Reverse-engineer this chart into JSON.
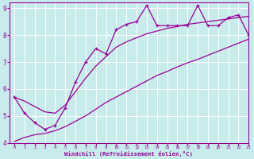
{
  "xlabel": "Windchill (Refroidissement éolien,°C)",
  "bg_color": "#c8ecec",
  "grid_color": "#aadddd",
  "line_color": "#990099",
  "x_data": [
    0,
    1,
    2,
    3,
    4,
    5,
    6,
    7,
    8,
    9,
    10,
    11,
    12,
    13,
    14,
    15,
    16,
    17,
    18,
    19,
    20,
    21,
    22,
    23
  ],
  "y_jagged": [
    5.7,
    5.1,
    4.75,
    4.5,
    4.65,
    5.3,
    6.25,
    7.0,
    7.5,
    7.3,
    8.2,
    8.4,
    8.5,
    9.1,
    8.35,
    8.35,
    8.35,
    8.35,
    9.1,
    8.35,
    8.35,
    8.65,
    8.75,
    8.0
  ],
  "y_upper": [
    5.7,
    5.55,
    5.35,
    5.15,
    5.1,
    5.4,
    5.9,
    6.4,
    6.85,
    7.2,
    7.55,
    7.75,
    7.9,
    8.05,
    8.15,
    8.25,
    8.32,
    8.4,
    8.45,
    8.5,
    8.55,
    8.6,
    8.65,
    8.7
  ],
  "y_lower": [
    4.05,
    4.2,
    4.3,
    4.35,
    4.45,
    4.6,
    4.8,
    5.0,
    5.25,
    5.5,
    5.7,
    5.9,
    6.1,
    6.3,
    6.5,
    6.65,
    6.82,
    6.97,
    7.1,
    7.25,
    7.4,
    7.55,
    7.7,
    7.85
  ],
  "xlim": [
    -0.5,
    23
  ],
  "ylim": [
    4,
    9.2
  ],
  "yticks": [
    4,
    5,
    6,
    7,
    8,
    9
  ],
  "xticks": [
    0,
    1,
    2,
    3,
    4,
    5,
    6,
    7,
    8,
    9,
    10,
    11,
    12,
    13,
    14,
    15,
    16,
    17,
    18,
    19,
    20,
    21,
    22,
    23
  ]
}
